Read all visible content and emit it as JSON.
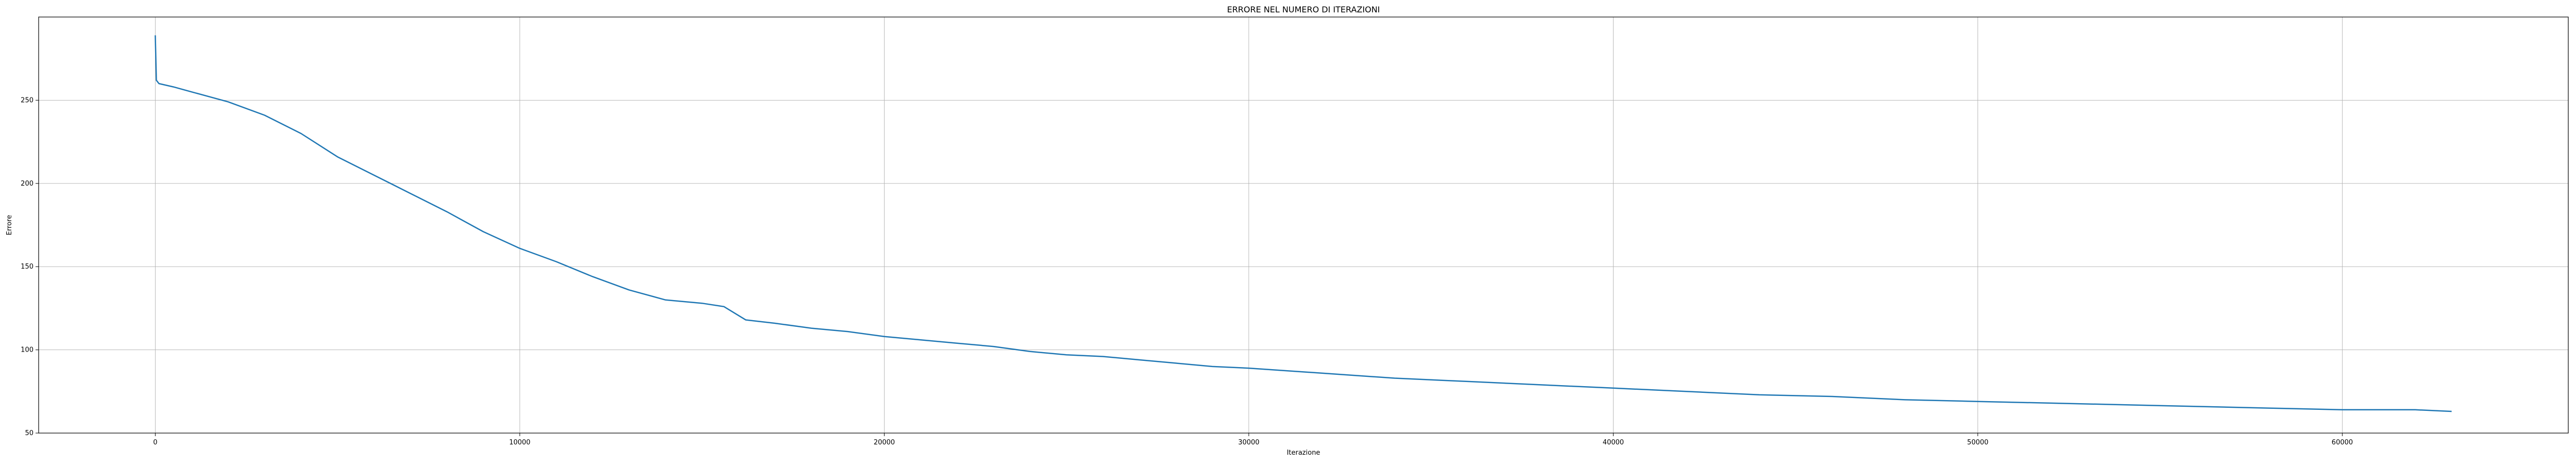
{
  "chart_data": {
    "type": "line",
    "title": "ERRORE NEL NUMERO DI ITERAZIONI",
    "xlabel": "Iterazione",
    "ylabel": "Errore",
    "xlim": [
      -3200,
      66200
    ],
    "ylim": [
      50,
      300
    ],
    "xticks": [
      0,
      10000,
      20000,
      30000,
      40000,
      50000,
      60000
    ],
    "yticks": [
      50,
      100,
      150,
      200,
      250
    ],
    "grid": true,
    "legend": "none",
    "series": [
      {
        "color": "#1f77b4",
        "x": [
          0,
          30,
          100,
          500,
          1000,
          2000,
          3000,
          4000,
          5000,
          6000,
          7000,
          8000,
          9000,
          10000,
          11000,
          12000,
          13000,
          14000,
          15000,
          15600,
          16200,
          17000,
          18000,
          19000,
          20000,
          21000,
          22000,
          23000,
          24000,
          25000,
          26000,
          27000,
          28000,
          29000,
          30000,
          32000,
          34000,
          36000,
          38000,
          40000,
          42000,
          44000,
          46000,
          48000,
          50000,
          52000,
          54000,
          56000,
          58000,
          60000,
          62000,
          63000
        ],
        "y": [
          289,
          262,
          260,
          258,
          255,
          249,
          241,
          230,
          216,
          205,
          194,
          183,
          171,
          161,
          153,
          144,
          136,
          130,
          128,
          126,
          118,
          116,
          113,
          111,
          108,
          106,
          104,
          102,
          99,
          97,
          96,
          94,
          92,
          90,
          89,
          86,
          83,
          81,
          79,
          77,
          75,
          73,
          72,
          70,
          69,
          68,
          67,
          66,
          65,
          64,
          64,
          63
        ]
      }
    ]
  }
}
